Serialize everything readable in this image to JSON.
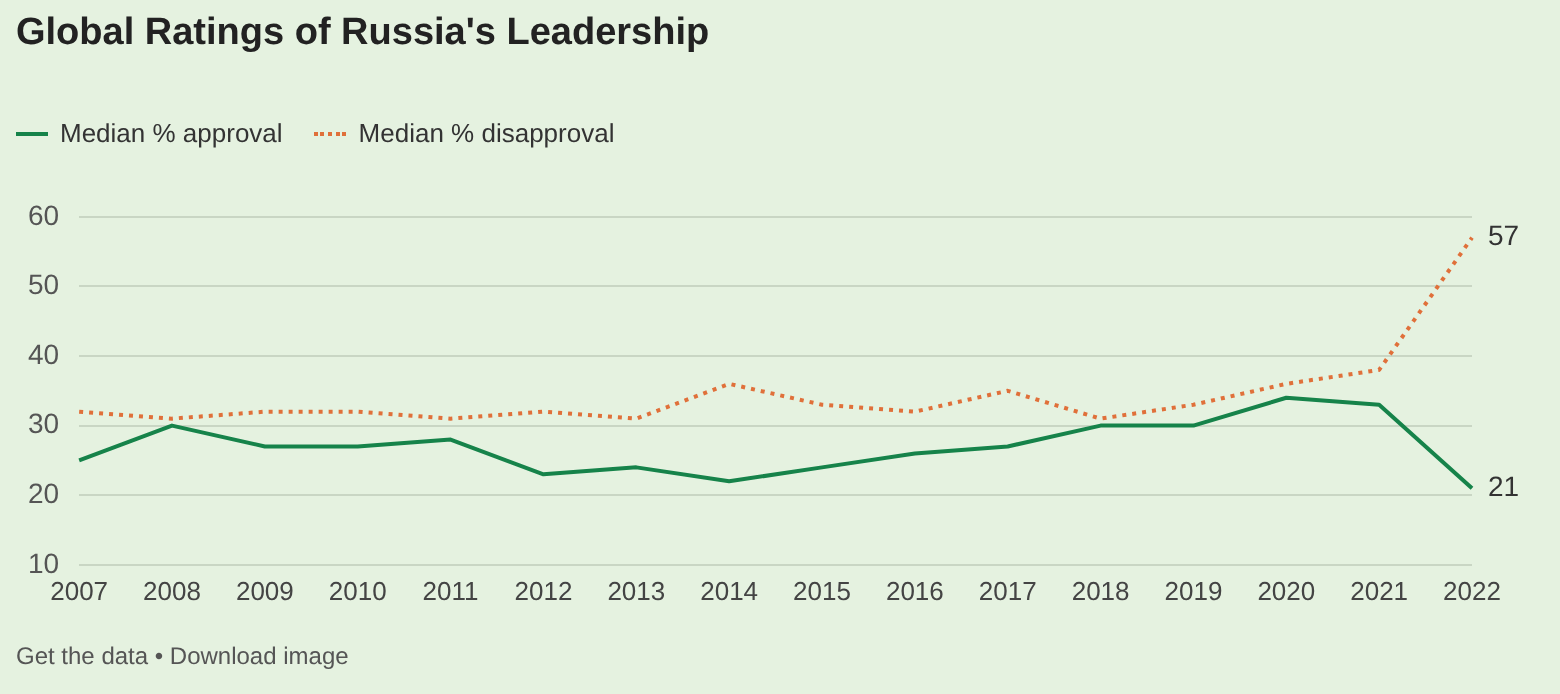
{
  "chart_data": {
    "type": "line",
    "title": "Global Ratings of Russia's Leadership",
    "categories": [
      "2007",
      "2008",
      "2009",
      "2010",
      "2011",
      "2012",
      "2013",
      "2014",
      "2015",
      "2016",
      "2017",
      "2018",
      "2019",
      "2020",
      "2021",
      "2022"
    ],
    "series": [
      {
        "name": "Median % approval",
        "color": "#16834a",
        "line_style": "solid",
        "values": [
          25,
          30,
          27,
          27,
          28,
          23,
          24,
          22,
          24,
          26,
          27,
          30,
          30,
          34,
          33,
          21
        ],
        "value_labels": [
          null,
          null,
          null,
          null,
          null,
          null,
          null,
          null,
          null,
          null,
          null,
          null,
          null,
          null,
          null,
          "21"
        ]
      },
      {
        "name": "Median % disapproval",
        "color": "#e0703a",
        "line_style": "dotted",
        "values": [
          32,
          31,
          32,
          32,
          31,
          32,
          31,
          36,
          33,
          32,
          35,
          31,
          33,
          36,
          38,
          57
        ],
        "value_labels": [
          null,
          null,
          null,
          null,
          null,
          null,
          null,
          null,
          null,
          null,
          null,
          null,
          null,
          null,
          null,
          "57"
        ]
      }
    ],
    "ylim": [
      10,
      60
    ],
    "yticks": [
      10,
      20,
      30,
      40,
      50,
      60
    ],
    "grid": "y",
    "legend": "top left",
    "marker": "none",
    "annotations": [
      "Get the data • Download image"
    ]
  }
}
